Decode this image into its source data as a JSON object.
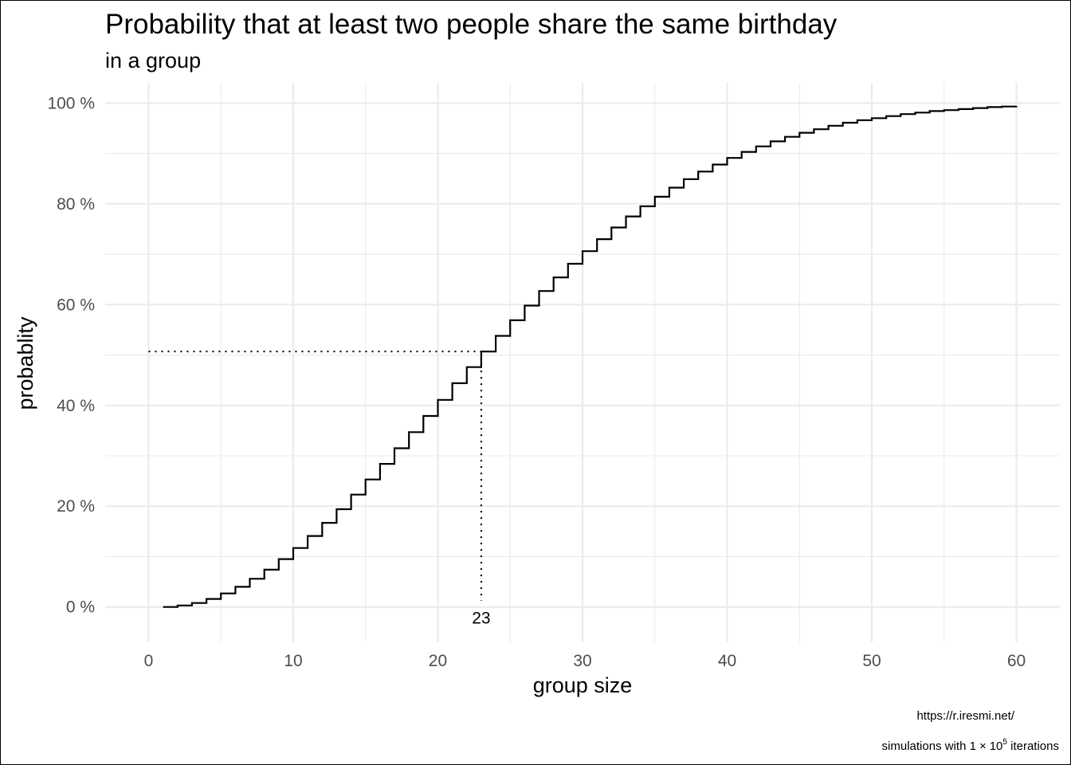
{
  "chart_data": {
    "type": "line",
    "subtype": "step",
    "title": "Probability that at least two people share the same birthday",
    "subtitle": "in a group",
    "xlabel": "group size",
    "ylabel": "probablity",
    "xlim": [
      -3,
      63
    ],
    "ylim": [
      -0.07,
      1.04
    ],
    "x_ticks": [
      0,
      10,
      20,
      30,
      40,
      50,
      60
    ],
    "x_tick_labels": [
      "0",
      "10",
      "20",
      "30",
      "40",
      "50",
      "60"
    ],
    "y_ticks": [
      0,
      0.2,
      0.4,
      0.6,
      0.8,
      1.0
    ],
    "y_tick_labels": [
      "0 %",
      "20 %",
      "40 %",
      "60 %",
      "80 %",
      "100 %"
    ],
    "grid": true,
    "legend": "none",
    "series": [
      {
        "color": "#000000",
        "x": [
          1,
          2,
          3,
          4,
          5,
          6,
          7,
          8,
          9,
          10,
          11,
          12,
          13,
          14,
          15,
          16,
          17,
          18,
          19,
          20,
          21,
          22,
          23,
          24,
          25,
          26,
          27,
          28,
          29,
          30,
          31,
          32,
          33,
          34,
          35,
          36,
          37,
          38,
          39,
          40,
          41,
          42,
          43,
          44,
          45,
          46,
          47,
          48,
          49,
          50,
          51,
          52,
          53,
          54,
          55,
          56,
          57,
          58,
          59,
          60
        ],
        "y": [
          0.0,
          0.003,
          0.008,
          0.016,
          0.027,
          0.04,
          0.056,
          0.074,
          0.095,
          0.117,
          0.141,
          0.167,
          0.194,
          0.223,
          0.253,
          0.284,
          0.315,
          0.347,
          0.379,
          0.411,
          0.444,
          0.476,
          0.507,
          0.538,
          0.569,
          0.598,
          0.627,
          0.654,
          0.681,
          0.706,
          0.73,
          0.753,
          0.775,
          0.795,
          0.814,
          0.832,
          0.849,
          0.864,
          0.878,
          0.891,
          0.903,
          0.914,
          0.924,
          0.933,
          0.941,
          0.948,
          0.955,
          0.961,
          0.966,
          0.97,
          0.974,
          0.978,
          0.981,
          0.984,
          0.986,
          0.988,
          0.99,
          0.992,
          0.993,
          0.994
        ]
      }
    ],
    "annotation": {
      "x": 23,
      "y": 0.507,
      "label": "23",
      "line_style": "dotted"
    },
    "caption_url": "https://r.iresmi.net/",
    "caption_sims_prefix": "simulations with 1",
    "caption_sims_times": "×",
    "caption_sims_base": "10",
    "caption_sims_exp": "5",
    "caption_sims_suffix": " iterations"
  }
}
